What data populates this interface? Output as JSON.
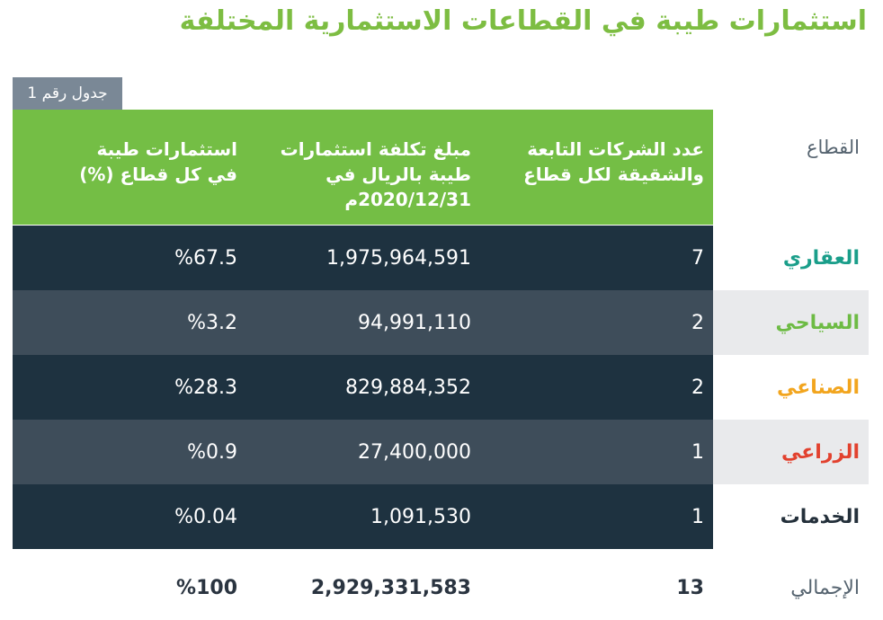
{
  "title": "استثمارات طيبة في القطاعات الاستثمارية المختلفة",
  "table_tag": "جدول رقم 1",
  "headers": {
    "sector": "القطاع",
    "companies_line1": "عدد الشركات التابعة",
    "companies_line2": "والشقيقة لكل قطاع",
    "cost_line1": "مبلغ تكلفة استثمارات",
    "cost_line2": "طيبة بالريال في",
    "cost_line3": "2020/12/31م",
    "share_line1": "استثمارات طيبة",
    "share_line2": "في كل قطاع (%)"
  },
  "rows": [
    {
      "sector": "العقاري",
      "companies": "7",
      "cost": "1,975,964,591",
      "share": "%67.5",
      "color": "#1a9e8a"
    },
    {
      "sector": "السياحي",
      "companies": "2",
      "cost": "94,991,110",
      "share": "%3.2",
      "color": "#6dbb44"
    },
    {
      "sector": "الصناعي",
      "companies": "2",
      "cost": "829,884,352",
      "share": "%28.3",
      "color": "#f2a51e"
    },
    {
      "sector": "الزراعي",
      "companies": "1",
      "cost": "27,400,000",
      "share": "%0.9",
      "color": "#e2412e"
    },
    {
      "sector": "الخدمات",
      "companies": "1",
      "cost": "1,091,530",
      "share": "%0.04",
      "color": "#24303b"
    }
  ],
  "total": {
    "sector": "الإجمالي",
    "companies": "13",
    "cost": "2,929,331,583",
    "share": "%100"
  },
  "colors": {
    "header_green": "#74be45",
    "row_dark": "#1e3240",
    "row_mid": "#3e4d5a",
    "row_side_light": "#e9eaec",
    "tag_gray": "#7a8896"
  }
}
